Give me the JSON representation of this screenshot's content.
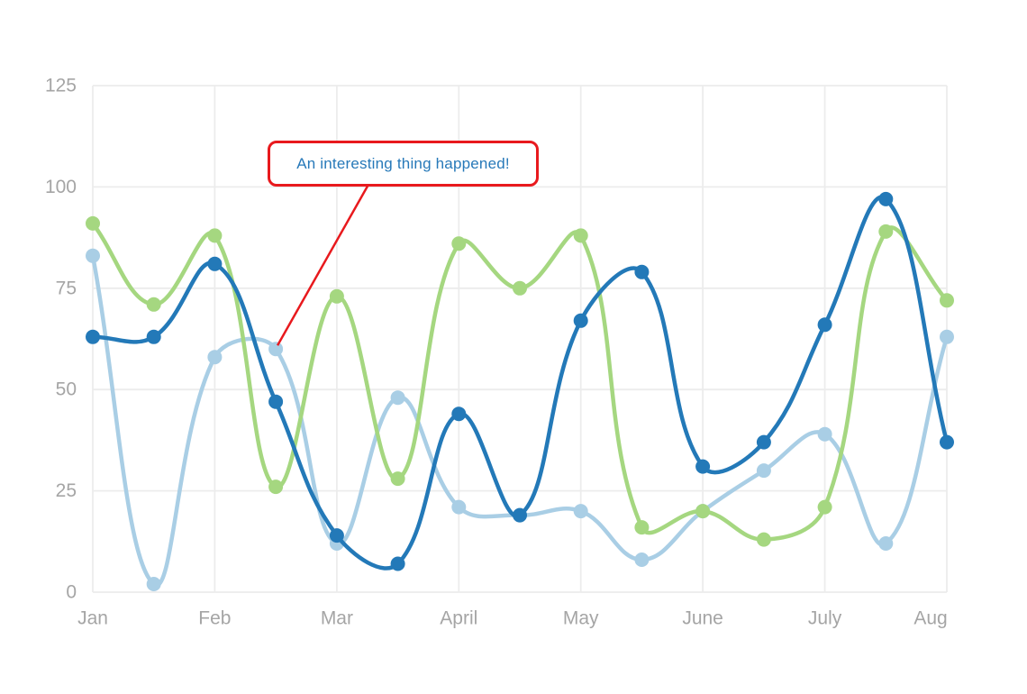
{
  "annotation": {
    "text": "An interesting thing happened!",
    "border_color": "#e8191d",
    "text_color": "#2779b9",
    "target": {
      "series": "light-blue",
      "month": "Feb",
      "x": 1.5,
      "value": 60
    }
  },
  "chart_data": {
    "type": "line",
    "title": "",
    "xlabel": "",
    "ylabel": "",
    "legend": "none",
    "grid": true,
    "ylim": [
      0,
      125
    ],
    "y_step": 25,
    "y_tick_labels": [
      "0",
      "25",
      "50",
      "75",
      "100",
      "125"
    ],
    "x_tick_labels": [
      "Jan",
      "Feb",
      "Mar",
      "April",
      "May",
      "June",
      "July",
      "Aug"
    ],
    "x_months": [
      0,
      0.5,
      1,
      1.5,
      2,
      2.5,
      3,
      3.5,
      4,
      4.5,
      5,
      5.5,
      6,
      6.5,
      7
    ],
    "draw_order": "first series is drawn at bottom, last on top",
    "series": [
      {
        "name": "light-blue",
        "color": "#a9cee5",
        "values": [
          83,
          2,
          58,
          60,
          12,
          48,
          21,
          19,
          20,
          8,
          20,
          30,
          39,
          12,
          63
        ]
      },
      {
        "name": "green",
        "color": "#a5d780",
        "values": [
          91,
          71,
          88,
          26,
          73,
          28,
          86,
          75,
          88,
          16,
          20,
          13,
          21,
          89,
          72
        ]
      },
      {
        "name": "dark-blue",
        "color": "#2379b8",
        "values": [
          63,
          63,
          81,
          47,
          14,
          7,
          44,
          19,
          67,
          79,
          31,
          37,
          66,
          97,
          37
        ]
      }
    ]
  },
  "style": {
    "background": "#ffffff",
    "grid_color": "#ececec",
    "tick_label_color": "#a5a5a5"
  }
}
